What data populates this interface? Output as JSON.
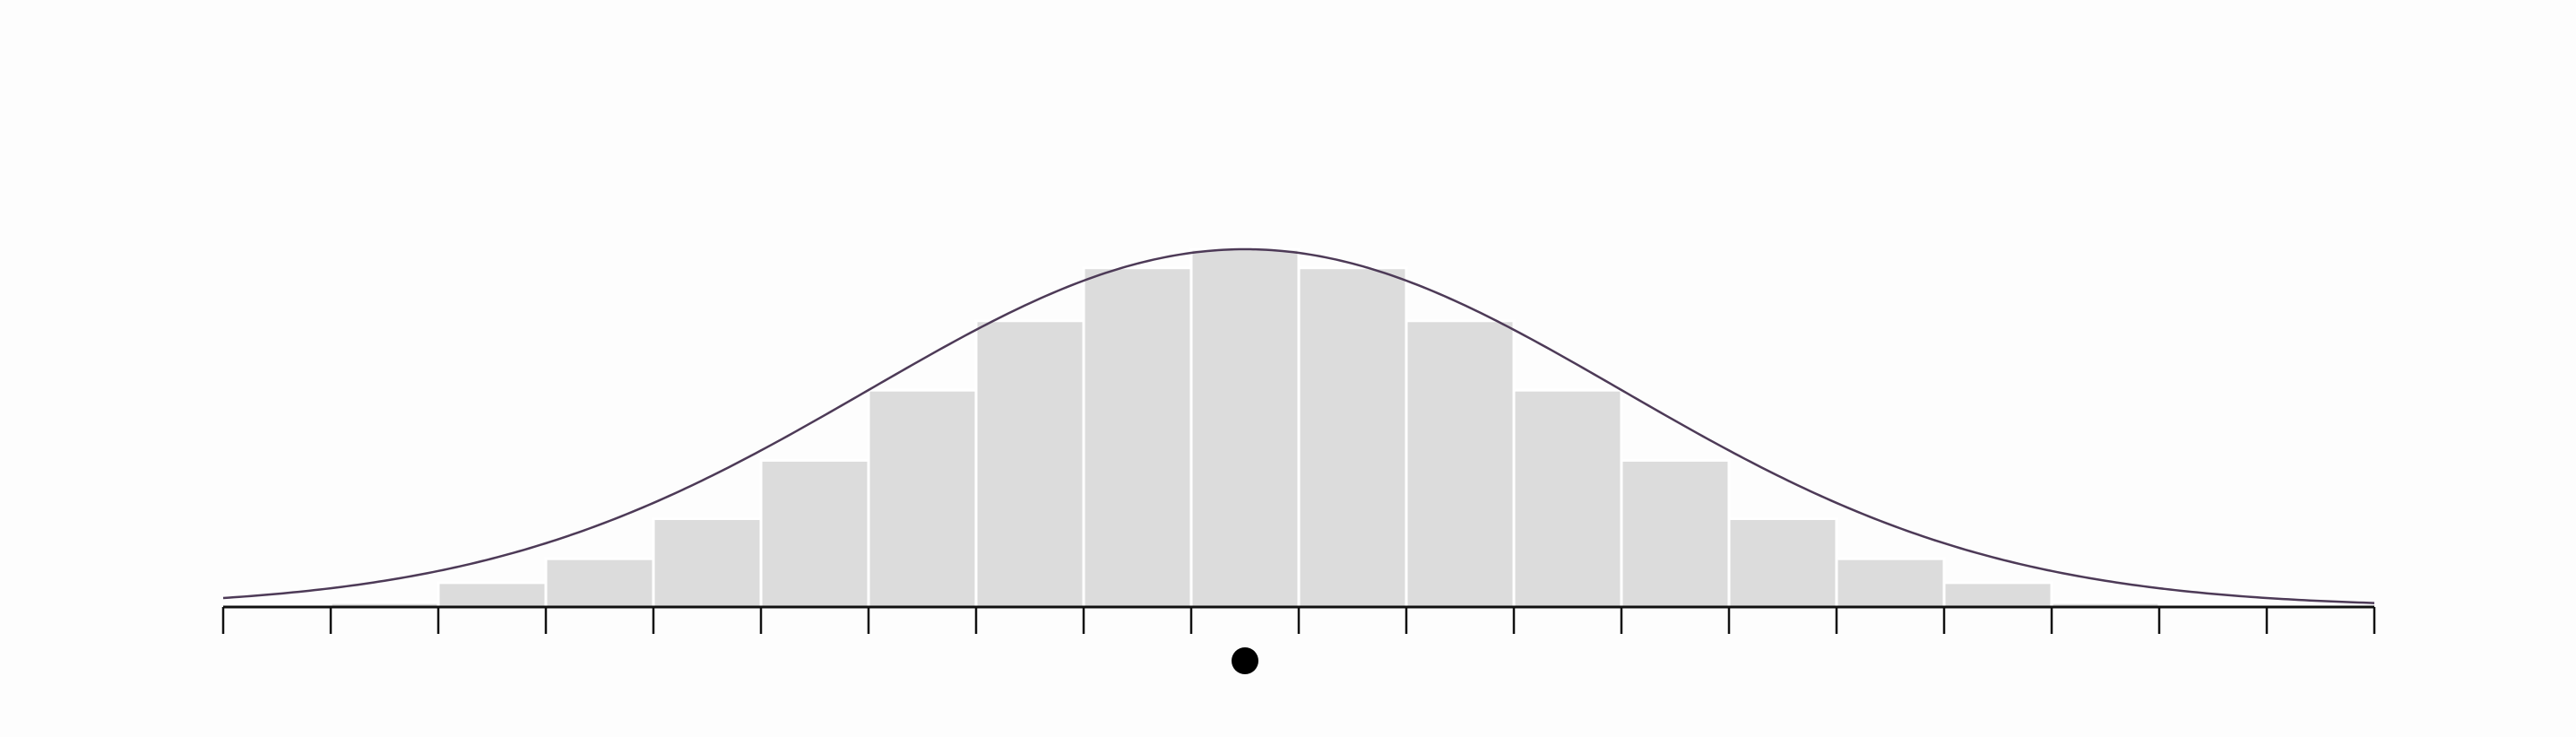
{
  "chart_data": {
    "type": "bar",
    "title": "",
    "xlabel": "",
    "ylabel": "",
    "x_range": [
      0,
      20
    ],
    "ylim": [
      0,
      1
    ],
    "bins": [
      {
        "x0": 0,
        "x1": 1,
        "value": 0.005
      },
      {
        "x0": 1,
        "x1": 2,
        "value": 0.012
      },
      {
        "x0": 2,
        "x1": 3,
        "value": 0.068
      },
      {
        "x0": 3,
        "x1": 4,
        "value": 0.135
      },
      {
        "x0": 4,
        "x1": 5,
        "value": 0.247
      },
      {
        "x0": 5,
        "x1": 6,
        "value": 0.41
      },
      {
        "x0": 6,
        "x1": 7,
        "value": 0.606
      },
      {
        "x0": 7,
        "x1": 8,
        "value": 0.8
      },
      {
        "x0": 8,
        "x1": 9,
        "value": 0.948
      },
      {
        "x0": 9,
        "x1": 10,
        "value": 1.0
      },
      {
        "x0": 10,
        "x1": 11,
        "value": 0.948
      },
      {
        "x0": 11,
        "x1": 12,
        "value": 0.8
      },
      {
        "x0": 12,
        "x1": 13,
        "value": 0.606
      },
      {
        "x0": 13,
        "x1": 14,
        "value": 0.41
      },
      {
        "x0": 14,
        "x1": 15,
        "value": 0.247
      },
      {
        "x0": 15,
        "x1": 16,
        "value": 0.135
      },
      {
        "x0": 16,
        "x1": 17,
        "value": 0.068
      },
      {
        "x0": 17,
        "x1": 18,
        "value": 0.012
      },
      {
        "x0": 18,
        "x1": 19,
        "value": 0.005
      },
      {
        "x0": 19,
        "x1": 20,
        "value": 0.002
      }
    ],
    "curve": {
      "type": "normal",
      "mean": 9.5,
      "sd": 3.5,
      "peak": 1.0
    },
    "ticks": [
      0,
      1,
      2,
      3,
      4,
      5,
      6,
      7,
      8,
      9,
      10,
      11,
      12,
      13,
      14,
      15,
      16,
      17,
      18,
      19,
      20
    ],
    "marker_x": 9.5,
    "grid": false,
    "legend": "none"
  },
  "colors": {
    "background": "#fdfdfd",
    "bar_fill": "#dcdcdc",
    "bar_stroke": "#ffffff",
    "curve": "#4d3a57",
    "axis": "#111111",
    "marker": "#000000"
  }
}
